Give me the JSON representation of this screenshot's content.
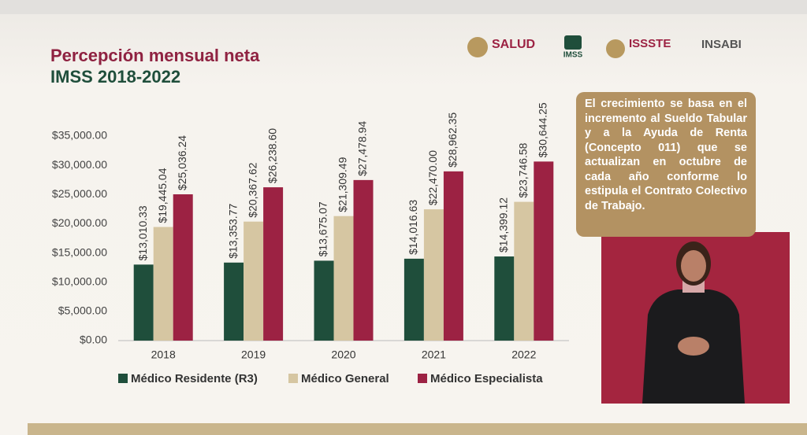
{
  "chart_data": {
    "type": "bar",
    "title": "Percepción mensual neta",
    "subtitle": "IMSS 2018-2022",
    "categories": [
      "2018",
      "2019",
      "2020",
      "2021",
      "2022"
    ],
    "series": [
      {
        "name": "Médico Residente (R3)",
        "color": "#1f4e3b",
        "values": [
          13010.33,
          13353.77,
          13675.07,
          14016.63,
          14399.12
        ],
        "value_labels": [
          "$13,010.33",
          "$13,353.77",
          "$13,675.07",
          "$14,016.63",
          "$14,399.12"
        ]
      },
      {
        "name": "Médico General",
        "color": "#d6c6a2",
        "values": [
          19445.04,
          20367.62,
          21309.49,
          22470.0,
          23746.58
        ],
        "value_labels": [
          "$19,445.04",
          "$20,367.62",
          "$21,309.49",
          "$22,470.00",
          "$23,746.58"
        ]
      },
      {
        "name": "Médico Especialista",
        "color": "#9c2243",
        "values": [
          25036.24,
          26238.6,
          27478.94,
          28962.35,
          30644.25
        ],
        "value_labels": [
          "$25,036.24",
          "$26,238.60",
          "$27,478.94",
          "$28,962.35",
          "$30,644.25"
        ]
      }
    ],
    "ylim": [
      0,
      35000
    ],
    "yticks": [
      {
        "value": 0,
        "label": "$0.00"
      },
      {
        "value": 5000,
        "label": "$5,000.00"
      },
      {
        "value": 10000,
        "label": "$10,000.00"
      },
      {
        "value": 15000,
        "label": "$15,000.00"
      },
      {
        "value": 20000,
        "label": "$20,000.00"
      },
      {
        "value": 25000,
        "label": "$25,000.00"
      },
      {
        "value": 30000,
        "label": "$30,000.00"
      },
      {
        "value": 35000,
        "label": "$35,000.00"
      }
    ],
    "grid": false,
    "legend": "bottom"
  },
  "logos": [
    "SALUD",
    "IMSS",
    "ISSSTE",
    "INSABI"
  ],
  "note": "El crecimiento se basa en el incremento al Sueldo Tabular y a la Ayuda de Renta (Concepto 011) que se actualizan en octubre de cada año conforme lo estipula el Contrato Colectivo de Trabajo."
}
